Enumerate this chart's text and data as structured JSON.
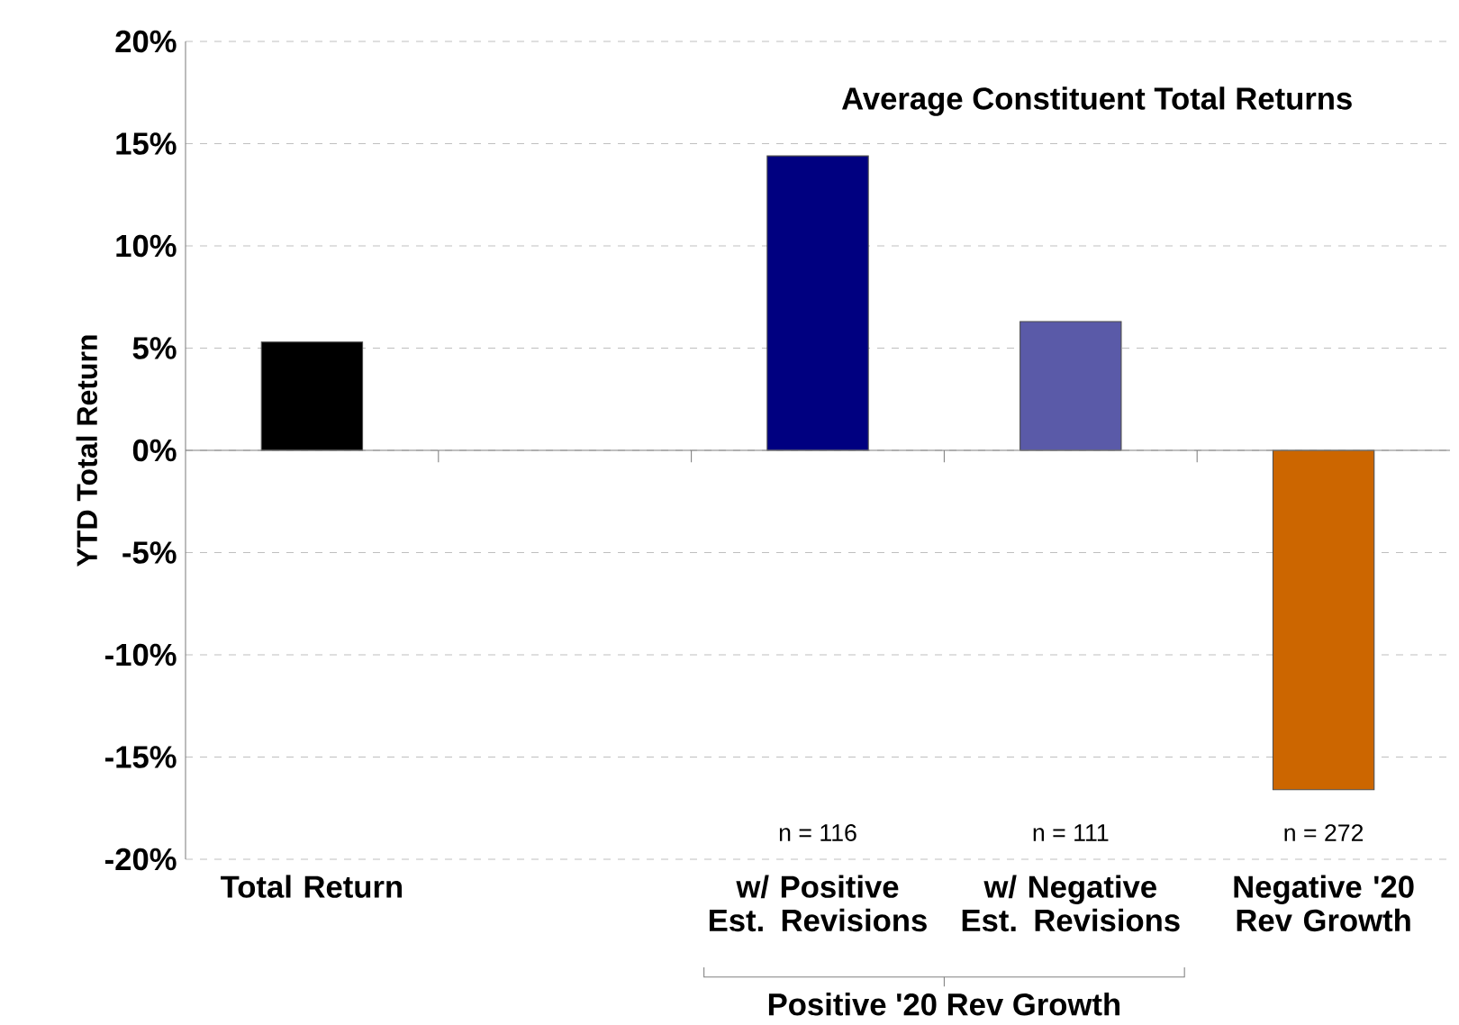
{
  "chart_data": {
    "type": "bar",
    "ylabel": "YTD Total Return",
    "categories": [
      "Total Return",
      null,
      "w/ Positive Est. Revisions",
      "w/ Negative Est. Revisions",
      "Negative '20 Rev Growth"
    ],
    "values": [
      5.3,
      null,
      14.4,
      6.3,
      -16.6
    ],
    "colors": [
      "#000000",
      "#000000",
      "#000080",
      "#5a5aa8",
      "#cc6600"
    ],
    "ylim": [
      -20,
      20
    ],
    "yticks": [
      {
        "value": -20,
        "label": "-20%"
      },
      {
        "value": -15,
        "label": "-15%"
      },
      {
        "value": -10,
        "label": "-10%"
      },
      {
        "value": -5,
        "label": "-5%"
      },
      {
        "value": 0,
        "label": "0%"
      },
      {
        "value": 5,
        "label": "5%"
      },
      {
        "value": 10,
        "label": "10%"
      },
      {
        "value": 15,
        "label": "15%"
      },
      {
        "value": 20,
        "label": "20%"
      }
    ],
    "grid": "y",
    "annotations": [
      "Average Constituent Total Returns",
      "n = 116",
      "n = 111",
      "n = 272",
      "Positive '20 Rev Growth"
    ]
  }
}
